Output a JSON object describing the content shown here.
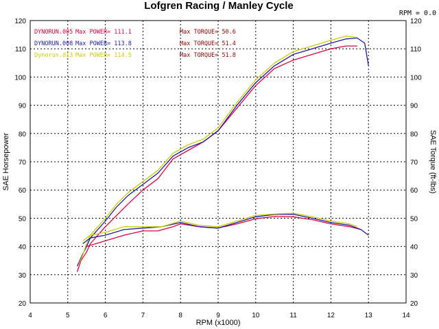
{
  "chart_data": {
    "type": "line",
    "title": "Lofgren Racing / Manley Cycle",
    "rpm_readout": "RPM = 0.0",
    "xlabel": "RPM (x1000)",
    "ylabel_left": "SAE Horsepower",
    "ylabel_right": "SAE Torque (ft-lbs)",
    "xlim": [
      4,
      14
    ],
    "ylim": [
      20,
      120
    ],
    "x_ticks": [
      "4",
      "5",
      "6",
      "7",
      "8",
      "9",
      "10",
      "11",
      "12",
      "13",
      "14"
    ],
    "y_ticks": [
      "20",
      "30",
      "40",
      "50",
      "60",
      "70",
      "80",
      "90",
      "100",
      "110",
      "120"
    ],
    "grid": true,
    "legend": [
      {
        "run": "DYNORUN.005",
        "power": "Max POWER= 111.1",
        "torque": "Max TORQUE= 50.6",
        "color": "#e0003c"
      },
      {
        "run": "DYNORUN.008",
        "power": "Max POWER= 113.8",
        "torque": "Max TORQUE= 51.4",
        "color": "#1a1aa0"
      },
      {
        "run": "Dynorun.013",
        "power": "Max POWER= 114.5",
        "torque": "Max TORQUE= 51.8",
        "color": "#c8cc00"
      }
    ],
    "series": [
      {
        "kind": "power",
        "color": "#e0003c",
        "x": [
          5.25,
          5.35,
          5.5,
          5.6,
          5.8,
          6.0,
          6.3,
          6.6,
          7.0,
          7.4,
          7.8,
          8.2,
          8.6,
          9.0,
          9.5,
          10.0,
          10.5,
          11.0,
          11.5,
          12.0,
          12.4,
          12.7
        ],
        "y": [
          31,
          35,
          38,
          41,
          44,
          47,
          51,
          55,
          60,
          64,
          71,
          74,
          77,
          81,
          89,
          97,
          103,
          106,
          108,
          110,
          111,
          111
        ]
      },
      {
        "kind": "power",
        "color": "#1a1aa0",
        "x": [
          5.25,
          5.35,
          5.5,
          5.6,
          5.8,
          6.0,
          6.3,
          6.6,
          7.0,
          7.4,
          7.8,
          8.2,
          8.6,
          9.0,
          9.5,
          10.0,
          10.5,
          11.0,
          11.5,
          12.0,
          12.4,
          12.7,
          12.9,
          13.0
        ],
        "y": [
          33,
          36,
          40,
          43,
          46,
          49,
          54,
          58,
          62,
          66,
          72,
          75,
          77,
          81,
          90,
          98,
          104,
          108,
          110,
          112,
          113.5,
          113.8,
          112,
          104
        ]
      },
      {
        "kind": "power",
        "color": "#c8cc00",
        "x": [
          5.3,
          5.4,
          5.5,
          5.6,
          5.8,
          6.0,
          6.3,
          6.6,
          7.0,
          7.4,
          7.8,
          8.2,
          8.6,
          9.0,
          9.5,
          10.0,
          10.5,
          11.0,
          11.5,
          12.0,
          12.4,
          12.7
        ],
        "y": [
          34,
          37,
          41,
          44,
          47,
          50,
          55,
          59,
          63,
          67,
          73,
          76,
          78,
          82,
          91,
          99,
          105,
          109,
          111,
          113,
          114.5,
          114
        ]
      },
      {
        "kind": "torque",
        "color": "#e0003c",
        "x": [
          5.5,
          6.0,
          6.5,
          7.0,
          7.4,
          7.8,
          8.0,
          8.5,
          9.0,
          9.5,
          10.0,
          10.5,
          11.0,
          11.5,
          12.0,
          12.5,
          12.8
        ],
        "y": [
          40,
          42,
          44,
          45.5,
          45.5,
          47,
          48,
          47,
          46.5,
          48,
          49.8,
          50.6,
          50.5,
          49.5,
          48,
          47,
          46
        ]
      },
      {
        "kind": "torque",
        "color": "#1a1aa0",
        "x": [
          5.4,
          5.6,
          6.0,
          6.5,
          7.0,
          7.5,
          8.0,
          8.5,
          9.0,
          9.5,
          10.0,
          10.5,
          11.0,
          11.5,
          12.0,
          12.5,
          12.8,
          13.0
        ],
        "y": [
          41,
          43,
          44,
          46,
          46.5,
          47,
          48.5,
          47,
          46.5,
          48.5,
          50.5,
          51.3,
          51.4,
          50,
          48.5,
          47.5,
          46,
          44
        ]
      },
      {
        "kind": "torque",
        "color": "#c8cc00",
        "x": [
          5.4,
          5.6,
          6.0,
          6.5,
          7.0,
          7.5,
          8.0,
          8.5,
          9.0,
          9.5,
          10.0,
          10.5,
          11.0,
          11.5,
          12.0,
          12.5,
          12.7
        ],
        "y": [
          42,
          44,
          45,
          47,
          47,
          47,
          49,
          47.5,
          47,
          49,
          51,
          51.5,
          51.8,
          50.5,
          49,
          48,
          47
        ]
      }
    ]
  }
}
